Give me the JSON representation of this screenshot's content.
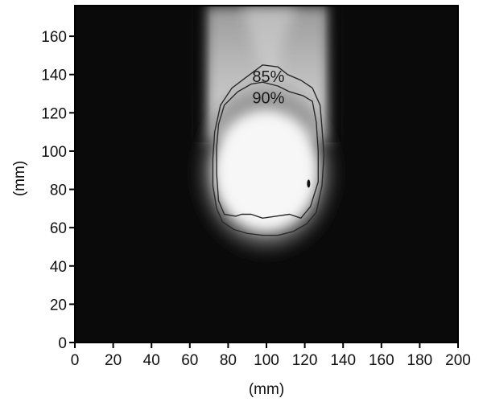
{
  "chart_data": {
    "type": "heatmap",
    "xlabel": "(mm)",
    "ylabel": "(mm)",
    "xlim": [
      0,
      200
    ],
    "ylim": [
      0,
      176
    ],
    "x_ticks": [
      "0",
      "20",
      "40",
      "60",
      "80",
      "100",
      "120",
      "140",
      "160",
      "180",
      "200"
    ],
    "y_ticks": [
      "0",
      "20",
      "40",
      "60",
      "80",
      "100",
      "120",
      "140",
      "160"
    ],
    "grid": false,
    "colors": {
      "background": "#0a0a0a",
      "hotspot": "#f7f7f7"
    },
    "contours": [
      {
        "label": "85%",
        "label_at": [
          101,
          136
        ],
        "points": [
          [
            98,
            145
          ],
          [
            106,
            144
          ],
          [
            111,
            140
          ],
          [
            118,
            137
          ],
          [
            124,
            133
          ],
          [
            128,
            124
          ],
          [
            129,
            112
          ],
          [
            130,
            98
          ],
          [
            129,
            82
          ],
          [
            126,
            68
          ],
          [
            121,
            62
          ],
          [
            114,
            58
          ],
          [
            106,
            56
          ],
          [
            98,
            56
          ],
          [
            90,
            57
          ],
          [
            83,
            59
          ],
          [
            77,
            63
          ],
          [
            74,
            70
          ],
          [
            72,
            82
          ],
          [
            72,
            96
          ],
          [
            73,
            110
          ],
          [
            76,
            124
          ],
          [
            82,
            133
          ],
          [
            90,
            139
          ]
        ]
      },
      {
        "label": "90%",
        "label_at": [
          101,
          125
        ],
        "points": [
          [
            98,
            136
          ],
          [
            106,
            134
          ],
          [
            112,
            131
          ],
          [
            119,
            129
          ],
          [
            124,
            126
          ],
          [
            126,
            115
          ],
          [
            127,
            100
          ],
          [
            127,
            84
          ],
          [
            123,
            71
          ],
          [
            118,
            65
          ],
          [
            112,
            67
          ],
          [
            105,
            66
          ],
          [
            98,
            65
          ],
          [
            92,
            67
          ],
          [
            87,
            67
          ],
          [
            84,
            66
          ],
          [
            78,
            67
          ],
          [
            75,
            74
          ],
          [
            74,
            88
          ],
          [
            74,
            102
          ],
          [
            75,
            114
          ],
          [
            78,
            124
          ],
          [
            85,
            131
          ],
          [
            92,
            135
          ]
        ]
      }
    ],
    "hot_spot_marker": [
      122,
      83
    ]
  }
}
